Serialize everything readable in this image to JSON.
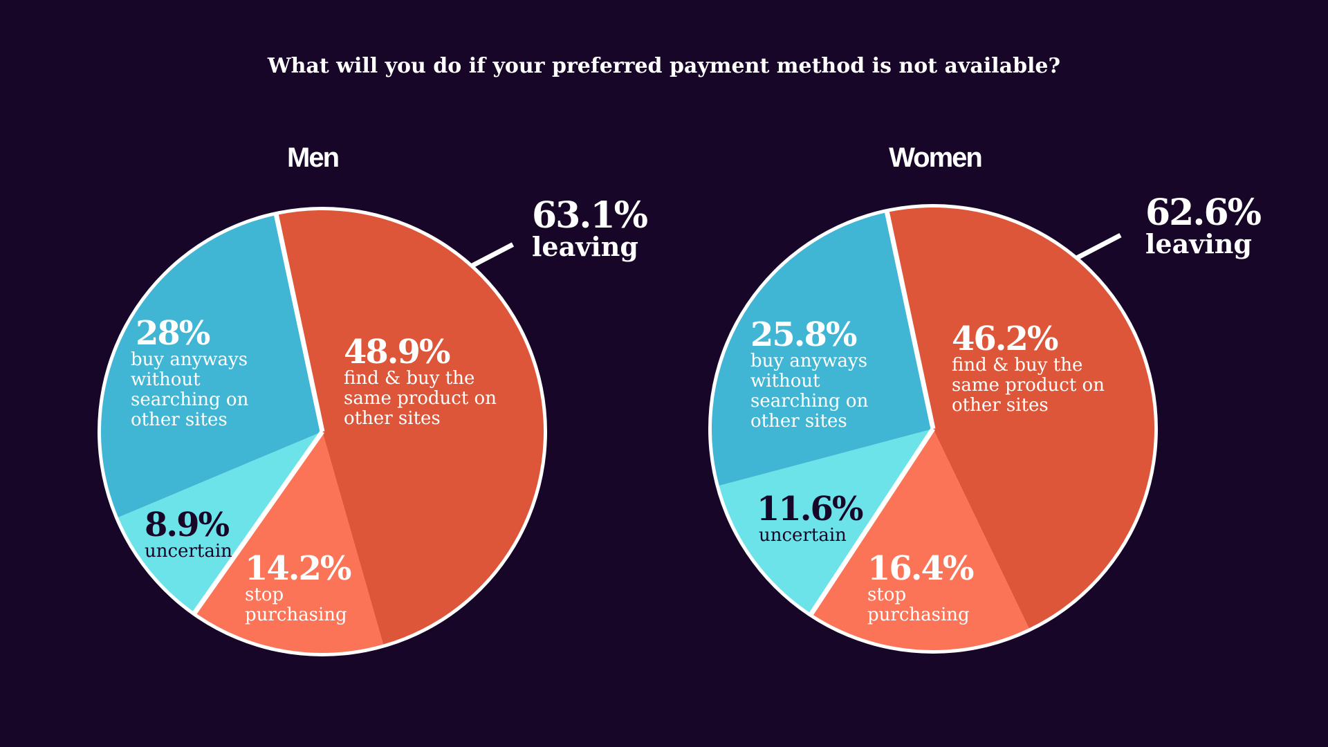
{
  "chart_data": [
    {
      "type": "pie",
      "title": "What will you do if your preferred payment method is not available?",
      "panel": "Men",
      "slices": [
        {
          "value": 48.9,
          "pct_label": "48.9%",
          "desc": "find & buy the\nsame product on\nother sites",
          "color": "#de5639"
        },
        {
          "value": 14.2,
          "pct_label": "14.2%",
          "desc": "stop\npurchasing",
          "color": "#fb7457"
        },
        {
          "value": 8.9,
          "pct_label": "8.9%",
          "desc": "uncertain",
          "color": "#6ce3e8"
        },
        {
          "value": 28,
          "pct_label": "28%",
          "desc": "buy anyways\nwithout\nsearching on\nother sites",
          "color": "#40b6d4"
        }
      ],
      "callout": {
        "value": "63.1%",
        "label": "leaving"
      }
    },
    {
      "type": "pie",
      "panel": "Women",
      "slices": [
        {
          "value": 46.2,
          "pct_label": "46.2%",
          "desc": "find & buy the\nsame product on\nother sites",
          "color": "#de5639"
        },
        {
          "value": 16.4,
          "pct_label": "16.4%",
          "desc": "stop\npurchasing",
          "color": "#fb7457"
        },
        {
          "value": 11.6,
          "pct_label": "11.6%",
          "desc": "uncertain",
          "color": "#6ce3e8"
        },
        {
          "value": 25.8,
          "pct_label": "25.8%",
          "desc": "buy anyways\nwithout\nsearching on\nother sites",
          "color": "#40b6d4"
        }
      ],
      "callout": {
        "value": "62.6%",
        "label": "leaving"
      }
    }
  ],
  "colors": {
    "background": "#170627",
    "outline": "#ffffff",
    "dark_text": "#170627"
  }
}
